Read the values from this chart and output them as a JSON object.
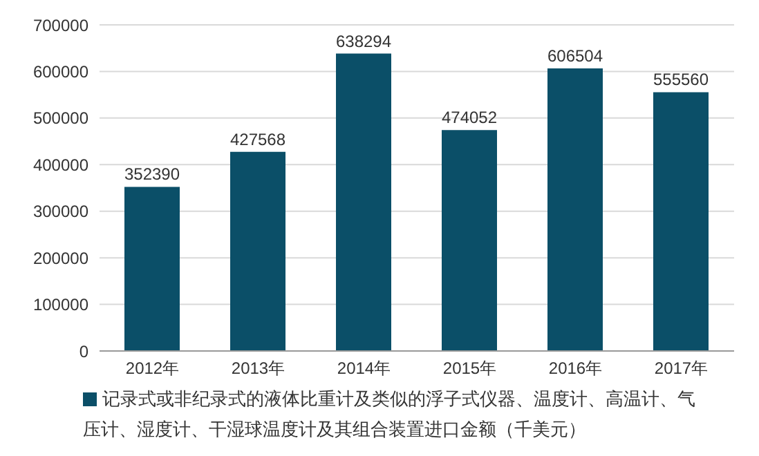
{
  "chart_data": {
    "type": "bar",
    "categories": [
      "2012年",
      "2013年",
      "2014年",
      "2015年",
      "2016年",
      "2017年"
    ],
    "series": [
      {
        "name": "记录式或非纪录式的液体比重计及类似的浮子式仪器、温度计、高温计、气压计、湿度计、干湿球温度计及其组合装置进口金额（千美元）",
        "color": "#0b4f68",
        "values": [
          352390,
          427568,
          638294,
          474052,
          606504,
          555560
        ]
      }
    ],
    "ylim": [
      0,
      700000
    ],
    "yticks": [
      0,
      100000,
      200000,
      300000,
      400000,
      500000,
      600000,
      700000
    ],
    "grid": "y",
    "legend": "bottom",
    "data_labels": true
  }
}
